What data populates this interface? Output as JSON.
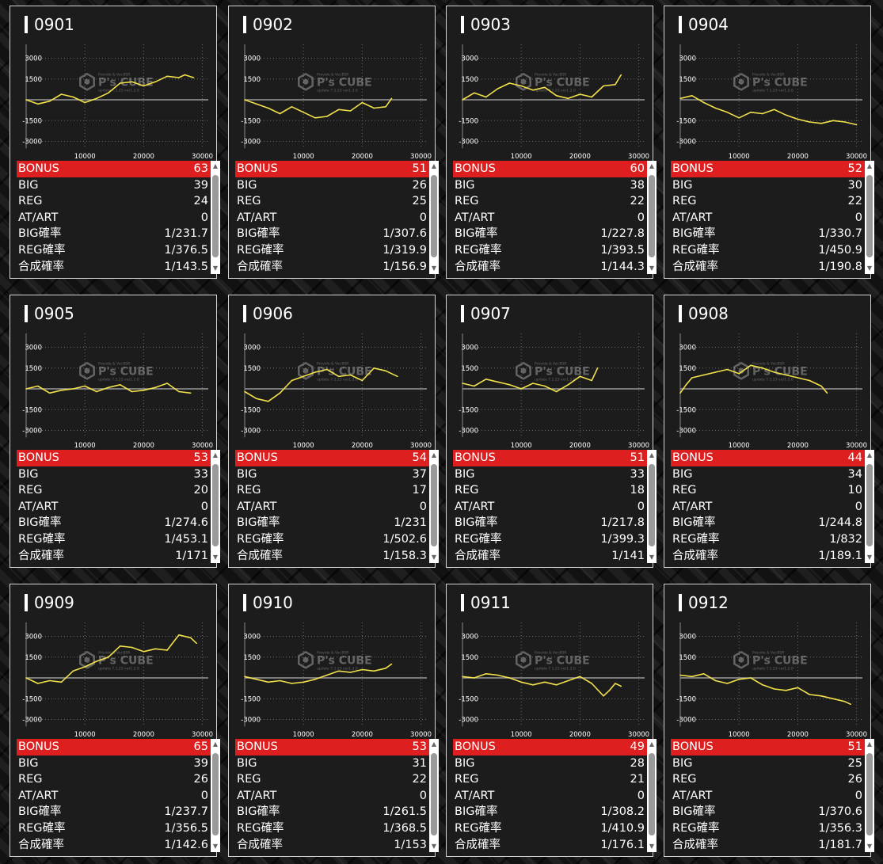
{
  "labels": {
    "bonus": "BONUS",
    "big": "BIG",
    "reg": "REG",
    "atart": "AT/ART",
    "big_rate": "BIG確率",
    "reg_rate": "REG確率",
    "total_rate": "合成確率"
  },
  "watermark": {
    "brand": "P's CUBE",
    "small_top": "Provide & Ver.BSR",
    "small_bottom": "update 7.1.23 ver1.2.0"
  },
  "colors": {
    "line": "#f2e14b",
    "bonus_row": "#dd1f1f",
    "grid": "#8a8a8a",
    "zero_line": "#9a9a9a",
    "card_border": "#d4d4d4"
  },
  "icons": {
    "scroll_up": "scroll-up-arrow-icon",
    "scroll_down": "scroll-down-arrow-icon"
  },
  "machines": [
    {
      "number": "0901",
      "bonus": "63",
      "big": "39",
      "reg": "24",
      "atart": "0",
      "big_rate": "1/231.7",
      "reg_rate": "1/376.5",
      "total_rate": "1/143.5"
    },
    {
      "number": "0902",
      "bonus": "51",
      "big": "26",
      "reg": "25",
      "atart": "0",
      "big_rate": "1/307.6",
      "reg_rate": "1/319.9",
      "total_rate": "1/156.9"
    },
    {
      "number": "0903",
      "bonus": "60",
      "big": "38",
      "reg": "22",
      "atart": "0",
      "big_rate": "1/227.8",
      "reg_rate": "1/393.5",
      "total_rate": "1/144.3"
    },
    {
      "number": "0904",
      "bonus": "52",
      "big": "30",
      "reg": "22",
      "atart": "0",
      "big_rate": "1/330.7",
      "reg_rate": "1/450.9",
      "total_rate": "1/190.8"
    },
    {
      "number": "0905",
      "bonus": "53",
      "big": "33",
      "reg": "20",
      "atart": "0",
      "big_rate": "1/274.6",
      "reg_rate": "1/453.1",
      "total_rate": "1/171"
    },
    {
      "number": "0906",
      "bonus": "54",
      "big": "37",
      "reg": "17",
      "atart": "0",
      "big_rate": "1/231",
      "reg_rate": "1/502.6",
      "total_rate": "1/158.3"
    },
    {
      "number": "0907",
      "bonus": "51",
      "big": "33",
      "reg": "18",
      "atart": "0",
      "big_rate": "1/217.8",
      "reg_rate": "1/399.3",
      "total_rate": "1/141"
    },
    {
      "number": "0908",
      "bonus": "44",
      "big": "34",
      "reg": "10",
      "atart": "0",
      "big_rate": "1/244.8",
      "reg_rate": "1/832",
      "total_rate": "1/189.1"
    },
    {
      "number": "0909",
      "bonus": "65",
      "big": "39",
      "reg": "26",
      "atart": "0",
      "big_rate": "1/237.7",
      "reg_rate": "1/356.5",
      "total_rate": "1/142.6"
    },
    {
      "number": "0910",
      "bonus": "53",
      "big": "31",
      "reg": "22",
      "atart": "0",
      "big_rate": "1/261.5",
      "reg_rate": "1/368.5",
      "total_rate": "1/153"
    },
    {
      "number": "0911",
      "bonus": "49",
      "big": "28",
      "reg": "21",
      "atart": "0",
      "big_rate": "1/308.2",
      "reg_rate": "1/410.9",
      "total_rate": "1/176.1"
    },
    {
      "number": "0912",
      "bonus": "51",
      "big": "25",
      "reg": "26",
      "atart": "0",
      "big_rate": "1/370.6",
      "reg_rate": "1/356.3",
      "total_rate": "1/181.7"
    }
  ],
  "chart_data": [
    {
      "type": "line",
      "title": "0901",
      "y_ticks": [
        3000,
        1500,
        -1500,
        -3000
      ],
      "x_ticks": [
        10000,
        20000,
        30000
      ],
      "xlim": [
        0,
        31000
      ],
      "ylim": [
        -4000,
        4000
      ],
      "grid": true,
      "x": [
        0,
        2000,
        4000,
        6000,
        8000,
        10000,
        12000,
        14000,
        16000,
        18000,
        20000,
        22000,
        24000,
        26000,
        27000,
        28500
      ],
      "y": [
        0,
        -300,
        -100,
        400,
        200,
        -200,
        100,
        500,
        1200,
        1300,
        1000,
        1300,
        1700,
        1600,
        1800,
        1600
      ]
    },
    {
      "type": "line",
      "title": "0902",
      "y_ticks": [
        3000,
        1500,
        -1500,
        -3000
      ],
      "x_ticks": [
        10000,
        20000,
        30000
      ],
      "xlim": [
        0,
        31000
      ],
      "ylim": [
        -4000,
        4000
      ],
      "grid": true,
      "x": [
        0,
        2000,
        4000,
        6000,
        8000,
        10000,
        12000,
        14000,
        16000,
        18000,
        20000,
        22000,
        24000,
        25000
      ],
      "y": [
        0,
        -300,
        -600,
        -1000,
        -500,
        -900,
        -1300,
        -1200,
        -700,
        -800,
        -200,
        -600,
        -500,
        100
      ]
    },
    {
      "type": "line",
      "title": "0903",
      "y_ticks": [
        3000,
        1500,
        -1500,
        -3000
      ],
      "x_ticks": [
        10000,
        20000,
        30000
      ],
      "xlim": [
        0,
        31000
      ],
      "ylim": [
        -4000,
        4000
      ],
      "grid": true,
      "x": [
        0,
        2000,
        4000,
        6000,
        8000,
        10000,
        12000,
        14000,
        16000,
        18000,
        20000,
        22000,
        24000,
        26000,
        27000
      ],
      "y": [
        0,
        500,
        200,
        800,
        1200,
        1000,
        700,
        900,
        300,
        100,
        400,
        200,
        1000,
        1100,
        1800
      ]
    },
    {
      "type": "line",
      "title": "0904",
      "y_ticks": [
        3000,
        1500,
        -1500,
        -3000
      ],
      "x_ticks": [
        10000,
        20000,
        30000
      ],
      "xlim": [
        0,
        31000
      ],
      "ylim": [
        -4000,
        4000
      ],
      "grid": true,
      "x": [
        0,
        2000,
        4000,
        6000,
        8000,
        10000,
        12000,
        14000,
        16000,
        18000,
        20000,
        22000,
        24000,
        26000,
        28000,
        30000
      ],
      "y": [
        100,
        300,
        -200,
        -600,
        -900,
        -1300,
        -900,
        -1000,
        -700,
        -1100,
        -1400,
        -1600,
        -1700,
        -1500,
        -1600,
        -1800
      ]
    },
    {
      "type": "line",
      "title": "0905",
      "y_ticks": [
        3000,
        1500,
        -1500,
        -3000
      ],
      "x_ticks": [
        10000,
        20000,
        30000
      ],
      "xlim": [
        0,
        31000
      ],
      "ylim": [
        -4000,
        4000
      ],
      "grid": true,
      "x": [
        0,
        2000,
        4000,
        6000,
        8000,
        10000,
        12000,
        14000,
        16000,
        18000,
        20000,
        22000,
        24000,
        26000,
        28000
      ],
      "y": [
        0,
        200,
        -300,
        -100,
        0,
        200,
        -200,
        100,
        300,
        -200,
        -100,
        100,
        400,
        -200,
        -300
      ]
    },
    {
      "type": "line",
      "title": "0906",
      "y_ticks": [
        3000,
        1500,
        -1500,
        -3000
      ],
      "x_ticks": [
        10000,
        20000,
        30000
      ],
      "xlim": [
        0,
        31000
      ],
      "ylim": [
        -4000,
        4000
      ],
      "grid": true,
      "x": [
        0,
        2000,
        4000,
        6000,
        8000,
        10000,
        12000,
        14000,
        16000,
        18000,
        20000,
        22000,
        24000,
        26000
      ],
      "y": [
        -200,
        -700,
        -900,
        -300,
        600,
        900,
        1200,
        1400,
        900,
        1000,
        600,
        1500,
        1300,
        900
      ]
    },
    {
      "type": "line",
      "title": "0907",
      "y_ticks": [
        3000,
        1500,
        -1500,
        -3000
      ],
      "x_ticks": [
        10000,
        20000,
        30000
      ],
      "xlim": [
        0,
        31000
      ],
      "ylim": [
        -4000,
        4000
      ],
      "grid": true,
      "x": [
        0,
        2000,
        4000,
        6000,
        8000,
        10000,
        12000,
        14000,
        16000,
        18000,
        20000,
        22000,
        23000
      ],
      "y": [
        400,
        200,
        700,
        500,
        300,
        0,
        400,
        200,
        -200,
        300,
        900,
        600,
        1500
      ]
    },
    {
      "type": "line",
      "title": "0908",
      "y_ticks": [
        3000,
        1500,
        -1500,
        -3000
      ],
      "x_ticks": [
        10000,
        20000,
        30000
      ],
      "xlim": [
        0,
        31000
      ],
      "ylim": [
        -4000,
        4000
      ],
      "grid": true,
      "x": [
        0,
        1000,
        2000,
        4000,
        6000,
        8000,
        10000,
        12000,
        14000,
        16000,
        18000,
        20000,
        22000,
        24000,
        25000
      ],
      "y": [
        -300,
        300,
        800,
        1000,
        1200,
        1400,
        1100,
        1700,
        1500,
        1200,
        1000,
        800,
        600,
        200,
        -300
      ]
    },
    {
      "type": "line",
      "title": "0909",
      "y_ticks": [
        3000,
        1500,
        -1500,
        -3000
      ],
      "x_ticks": [
        10000,
        20000,
        30000
      ],
      "xlim": [
        0,
        31000
      ],
      "ylim": [
        -4000,
        4000
      ],
      "grid": true,
      "x": [
        0,
        2000,
        4000,
        6000,
        8000,
        10000,
        12000,
        14000,
        16000,
        18000,
        20000,
        22000,
        24000,
        26000,
        28000,
        29000
      ],
      "y": [
        0,
        -400,
        -200,
        -300,
        500,
        800,
        1200,
        1500,
        2300,
        2200,
        1900,
        2100,
        2000,
        3100,
        2900,
        2500
      ]
    },
    {
      "type": "line",
      "title": "0910",
      "y_ticks": [
        3000,
        1500,
        -1500,
        -3000
      ],
      "x_ticks": [
        10000,
        20000,
        30000
      ],
      "xlim": [
        0,
        31000
      ],
      "ylim": [
        -4000,
        4000
      ],
      "grid": true,
      "x": [
        0,
        2000,
        4000,
        6000,
        8000,
        10000,
        12000,
        14000,
        16000,
        18000,
        20000,
        22000,
        24000,
        25000
      ],
      "y": [
        100,
        -100,
        -300,
        -200,
        -400,
        -300,
        -100,
        200,
        500,
        400,
        600,
        500,
        700,
        1000
      ]
    },
    {
      "type": "line",
      "title": "0911",
      "y_ticks": [
        3000,
        1500,
        -1500,
        -3000
      ],
      "x_ticks": [
        10000,
        20000,
        30000
      ],
      "xlim": [
        0,
        31000
      ],
      "ylim": [
        -4000,
        4000
      ],
      "grid": true,
      "x": [
        0,
        2000,
        4000,
        6000,
        8000,
        10000,
        12000,
        14000,
        16000,
        18000,
        20000,
        22000,
        24000,
        25000,
        26000,
        27000
      ],
      "y": [
        100,
        0,
        300,
        200,
        0,
        -300,
        -500,
        -300,
        -500,
        -200,
        100,
        -400,
        -1300,
        -900,
        -400,
        -600
      ]
    },
    {
      "type": "line",
      "title": "0912",
      "y_ticks": [
        3000,
        1500,
        -1500,
        -3000
      ],
      "x_ticks": [
        10000,
        20000,
        30000
      ],
      "xlim": [
        0,
        31000
      ],
      "ylim": [
        -4000,
        4000
      ],
      "grid": true,
      "x": [
        0,
        2000,
        4000,
        6000,
        8000,
        10000,
        12000,
        14000,
        16000,
        18000,
        20000,
        22000,
        24000,
        26000,
        28000,
        29000
      ],
      "y": [
        200,
        100,
        300,
        -200,
        -400,
        -100,
        0,
        -500,
        -800,
        -900,
        -700,
        -1200,
        -1300,
        -1500,
        -1700,
        -1900
      ]
    }
  ]
}
